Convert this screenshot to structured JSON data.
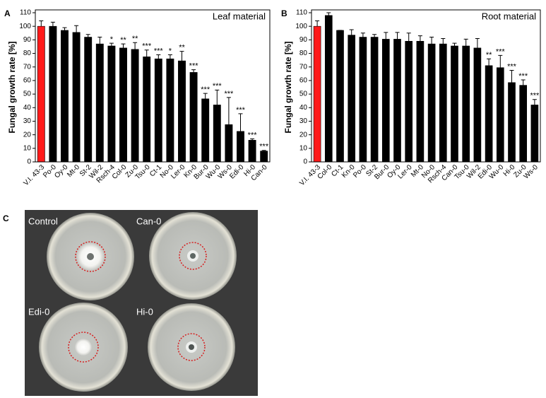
{
  "chart_data": [
    {
      "type": "bar",
      "panel_label": "A",
      "title": "Leaf material",
      "ylabel": "Fungal growth rate [%]",
      "categories": [
        "V.I. 43-3",
        "Po-0",
        "Oy-0",
        "Mt-0",
        "St-2",
        "Wil-2",
        "Rsch-4",
        "Col-0",
        "Zu-0",
        "Tsu-0",
        "Ct-1",
        "No-0",
        "Ler-0",
        "Kn-0",
        "Bur-0",
        "Wu-0",
        "Ws-0",
        "Edi-0",
        "Hi-0",
        "Can-0"
      ],
      "values": [
        100,
        100,
        97,
        95.5,
        92,
        87,
        85.5,
        84,
        83,
        77.5,
        76,
        76,
        74.5,
        66,
        46.5,
        42,
        27.5,
        22.5,
        16,
        8
      ],
      "errors": [
        4,
        3,
        2,
        5,
        2,
        5,
        2,
        3,
        5,
        5,
        3,
        3,
        7,
        2,
        4,
        11,
        20,
        13,
        1,
        0.5
      ],
      "annotations": [
        null,
        null,
        null,
        null,
        null,
        null,
        "*",
        "**",
        "**",
        "***",
        "***",
        "*",
        "**",
        "***",
        "***",
        "***",
        "***",
        "***",
        "***",
        "***"
      ],
      "colors": [
        "#ff1a1a",
        "#000000",
        "#000000",
        "#000000",
        "#000000",
        "#000000",
        "#000000",
        "#000000",
        "#000000",
        "#000000",
        "#000000",
        "#000000",
        "#000000",
        "#000000",
        "#000000",
        "#000000",
        "#000000",
        "#000000",
        "#000000",
        "#000000"
      ],
      "ylim": [
        0,
        110
      ],
      "yticks": [
        0,
        10,
        20,
        30,
        40,
        50,
        60,
        70,
        80,
        90,
        100,
        110
      ]
    },
    {
      "type": "bar",
      "panel_label": "B",
      "title": "Root material",
      "ylabel": "Fungal growth rate [%]",
      "categories": [
        "V.I. 43-3",
        "Col-0",
        "Ct-1",
        "Kn-0",
        "Po-0",
        "St-2",
        "Bur-0",
        "Oy-0",
        "Ler-0",
        "Mt-0",
        "No-0",
        "Rsch-4",
        "Can-0",
        "Tsu-0",
        "Wil-2",
        "Edi-0",
        "Wu-0",
        "Hi-0",
        "Zu-0",
        "Ws-0"
      ],
      "values": [
        100,
        108,
        97,
        93.5,
        92,
        92,
        90.5,
        90.5,
        89,
        89,
        87,
        87,
        85.5,
        85.5,
        84,
        71,
        69.5,
        58.5,
        56.5,
        42
      ],
      "errors": [
        4,
        2,
        0,
        4,
        3,
        2,
        5,
        5,
        6,
        4,
        5,
        4,
        2,
        5,
        7,
        5,
        9,
        9,
        4,
        4
      ],
      "annotations": [
        null,
        null,
        null,
        null,
        null,
        null,
        null,
        null,
        null,
        null,
        null,
        null,
        null,
        null,
        null,
        "**",
        "***",
        "***",
        "***",
        "***"
      ],
      "colors": [
        "#ff1a1a",
        "#000000",
        "#000000",
        "#000000",
        "#000000",
        "#000000",
        "#000000",
        "#000000",
        "#000000",
        "#000000",
        "#000000",
        "#000000",
        "#000000",
        "#000000",
        "#000000",
        "#000000",
        "#000000",
        "#000000",
        "#000000",
        "#000000"
      ],
      "ylim": [
        0,
        110
      ],
      "yticks": [
        0,
        10,
        20,
        30,
        40,
        50,
        60,
        70,
        80,
        90,
        100,
        110
      ]
    }
  ],
  "photo": {
    "panel_label": "C",
    "captions": [
      "Control",
      "Can-0",
      "Edi-0",
      "Hi-0"
    ]
  }
}
